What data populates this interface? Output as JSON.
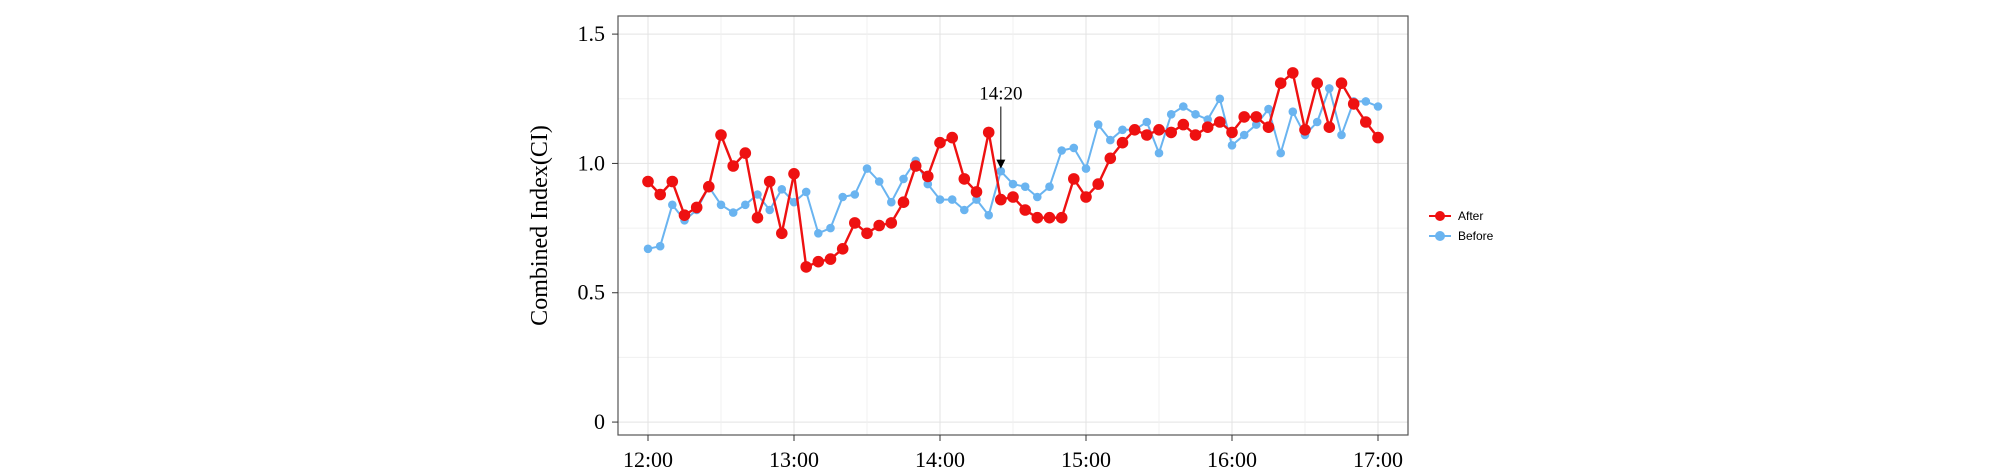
{
  "chart_data": {
    "type": "line",
    "title": "",
    "xlabel": "",
    "ylabel": "Combined Index(CI)",
    "x_ticks": [
      "12:00",
      "13:00",
      "14:00",
      "15:00",
      "16:00",
      "17:00"
    ],
    "y_ticks": [
      "0",
      "0.5",
      "1.0",
      "1.5"
    ],
    "xlim": [
      0,
      300
    ],
    "ylim": [
      -0.05,
      1.57
    ],
    "grid": true,
    "legend_position": "right",
    "annotation": {
      "label": "14:20",
      "x_minutes": 145,
      "y": 0.98
    },
    "series": [
      {
        "name": "After",
        "color": "#ee1111",
        "x_minutes": [
          0,
          5,
          10,
          15,
          20,
          25,
          30,
          35,
          40,
          45,
          50,
          55,
          60,
          65,
          70,
          75,
          80,
          85,
          90,
          95,
          100,
          105,
          110,
          115,
          120,
          125,
          130,
          135,
          140,
          145,
          150,
          155,
          160,
          165,
          170,
          175,
          180,
          185,
          190,
          195,
          200,
          205,
          210,
          215,
          220,
          225,
          230,
          235,
          240,
          245,
          250,
          255,
          260,
          265,
          270,
          275,
          280,
          285,
          290,
          295,
          300
        ],
        "values": [
          0.93,
          0.88,
          0.93,
          0.8,
          0.83,
          0.91,
          1.11,
          0.99,
          1.04,
          0.79,
          0.93,
          0.73,
          0.96,
          0.6,
          0.62,
          0.63,
          0.67,
          0.77,
          0.73,
          0.76,
          0.77,
          0.85,
          0.99,
          0.95,
          1.08,
          1.1,
          0.94,
          0.89,
          1.12,
          0.86,
          0.87,
          0.82,
          0.79,
          0.79,
          0.79,
          0.94,
          0.87,
          0.92,
          1.02,
          1.08,
          1.13,
          1.11,
          1.13,
          1.12,
          1.15,
          1.11,
          1.14,
          1.16,
          1.12,
          1.18,
          1.18,
          1.14,
          1.31,
          1.35,
          1.13,
          1.31,
          1.14,
          1.31,
          1.23,
          1.16,
          1.1
        ]
      },
      {
        "name": "Before",
        "color": "#6ab4f0",
        "x_minutes": [
          0,
          5,
          10,
          15,
          20,
          25,
          30,
          35,
          40,
          45,
          50,
          55,
          60,
          65,
          70,
          75,
          80,
          85,
          90,
          95,
          100,
          105,
          110,
          115,
          120,
          125,
          130,
          135,
          140,
          145,
          150,
          155,
          160,
          165,
          170,
          175,
          180,
          185,
          190,
          195,
          200,
          205,
          210,
          215,
          220,
          225,
          230,
          235,
          240,
          245,
          250,
          255,
          260,
          265,
          270,
          275,
          280,
          285,
          290,
          295,
          300
        ],
        "values": [
          0.67,
          0.68,
          0.84,
          0.78,
          0.82,
          0.91,
          0.84,
          0.81,
          0.84,
          0.88,
          0.82,
          0.9,
          0.85,
          0.89,
          0.73,
          0.75,
          0.87,
          0.88,
          0.98,
          0.93,
          0.85,
          0.94,
          1.01,
          0.92,
          0.86,
          0.86,
          0.82,
          0.86,
          0.8,
          0.97,
          0.92,
          0.91,
          0.87,
          0.91,
          1.05,
          1.06,
          0.98,
          1.15,
          1.09,
          1.13,
          1.13,
          1.16,
          1.04,
          1.19,
          1.22,
          1.19,
          1.17,
          1.25,
          1.07,
          1.11,
          1.15,
          1.21,
          1.04,
          1.2,
          1.11,
          1.16,
          1.29,
          1.11,
          1.24,
          1.24,
          1.22
        ]
      }
    ]
  }
}
